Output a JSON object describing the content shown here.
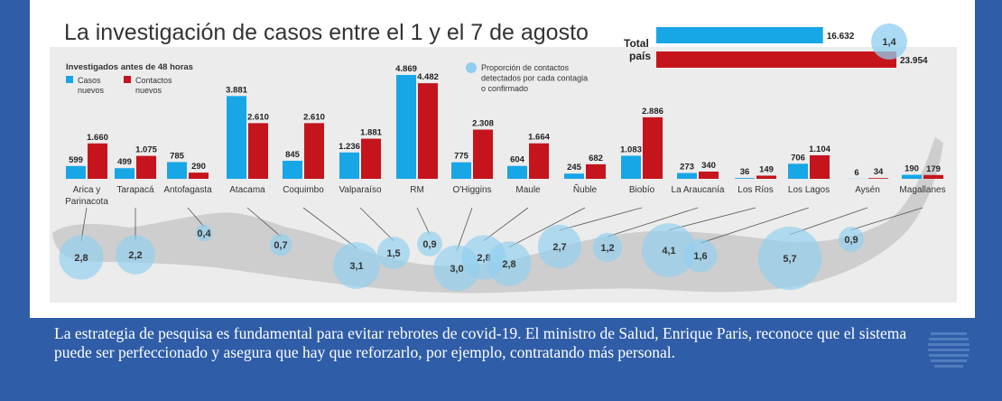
{
  "colors": {
    "cases": "#17a6e6",
    "contacts": "#c5141c",
    "bubble": "#8fcff0",
    "map": "#c9c9c9",
    "background": "#2f5da8"
  },
  "chart_data": {
    "type": "bar",
    "title": "La investigación de casos entre el 1 y el 7 de agosto",
    "subtitle": "Investigados antes de 48 horas",
    "legend": {
      "cases": "Casos nuevos",
      "contacts": "Contactos nuevos",
      "ratio": "Proporción de contactos detectados por cada contagiado confirmado",
      "placement": "top-left"
    },
    "categories": [
      "Arica y Parinacota",
      "Tarapacá",
      "Antofagasta",
      "Atacama",
      "Coquimbo",
      "Valparaíso",
      "RM",
      "O'Higgins",
      "Maule",
      "Ñuble",
      "Biobío",
      "La Araucanía",
      "Los Ríos",
      "Los Lagos",
      "Aysén",
      "Magallanes"
    ],
    "series": [
      {
        "name": "Casos nuevos",
        "values": [
          599,
          499,
          785,
          3881,
          845,
          1236,
          4869,
          775,
          604,
          245,
          1083,
          273,
          36,
          706,
          6,
          190
        ],
        "labels": [
          "599",
          "499",
          "785",
          "3.881",
          "845",
          "1.236",
          "4.869",
          "775",
          "604",
          "245",
          "1.083",
          "273",
          "36",
          "706",
          "6",
          "190"
        ]
      },
      {
        "name": "Contactos nuevos",
        "values": [
          1660,
          1075,
          290,
          2610,
          2610,
          1881,
          4482,
          2308,
          1664,
          682,
          2886,
          340,
          149,
          1104,
          34,
          179
        ],
        "labels": [
          "1.660",
          "1.075",
          "290",
          "2.610",
          "2.610",
          "1.881",
          "4.482",
          "2.308",
          "1.664",
          "682",
          "2.886",
          "340",
          "149",
          "1.104",
          "34",
          "179"
        ]
      },
      {
        "name": "Proporción de contactos detectados por cada contagiado confirmado",
        "values": [
          2.8,
          2.2,
          0.4,
          0.7,
          3.1,
          1.5,
          0.9,
          3.0,
          2.8,
          2.8,
          2.7,
          1.2,
          4.1,
          1.6,
          5.7,
          0.9
        ],
        "labels": [
          "2,8",
          "2,2",
          "0,4",
          "0,7",
          "3,1",
          "1,5",
          "0,9",
          "3,0",
          "2,8",
          "2,8",
          "2,7",
          "1,2",
          "4,1",
          "1,6",
          "5,7",
          "0,9"
        ]
      }
    ],
    "total": {
      "label_line1": "Total",
      "label_line2": "país",
      "cases": 16632,
      "cases_label": "16.632",
      "contacts": 23954,
      "contacts_label": "23.954",
      "ratio": 1.4,
      "ratio_label": "1,4"
    }
  },
  "caption": "La estrategia de pesquisa es fundamental para evitar rebrotes de covid-19. El ministro de Salud, Enrique Paris, reconoce que el sistema puede ser perfeccionado y asegura que hay que reforzarlo, por ejemplo, contratando más personal."
}
